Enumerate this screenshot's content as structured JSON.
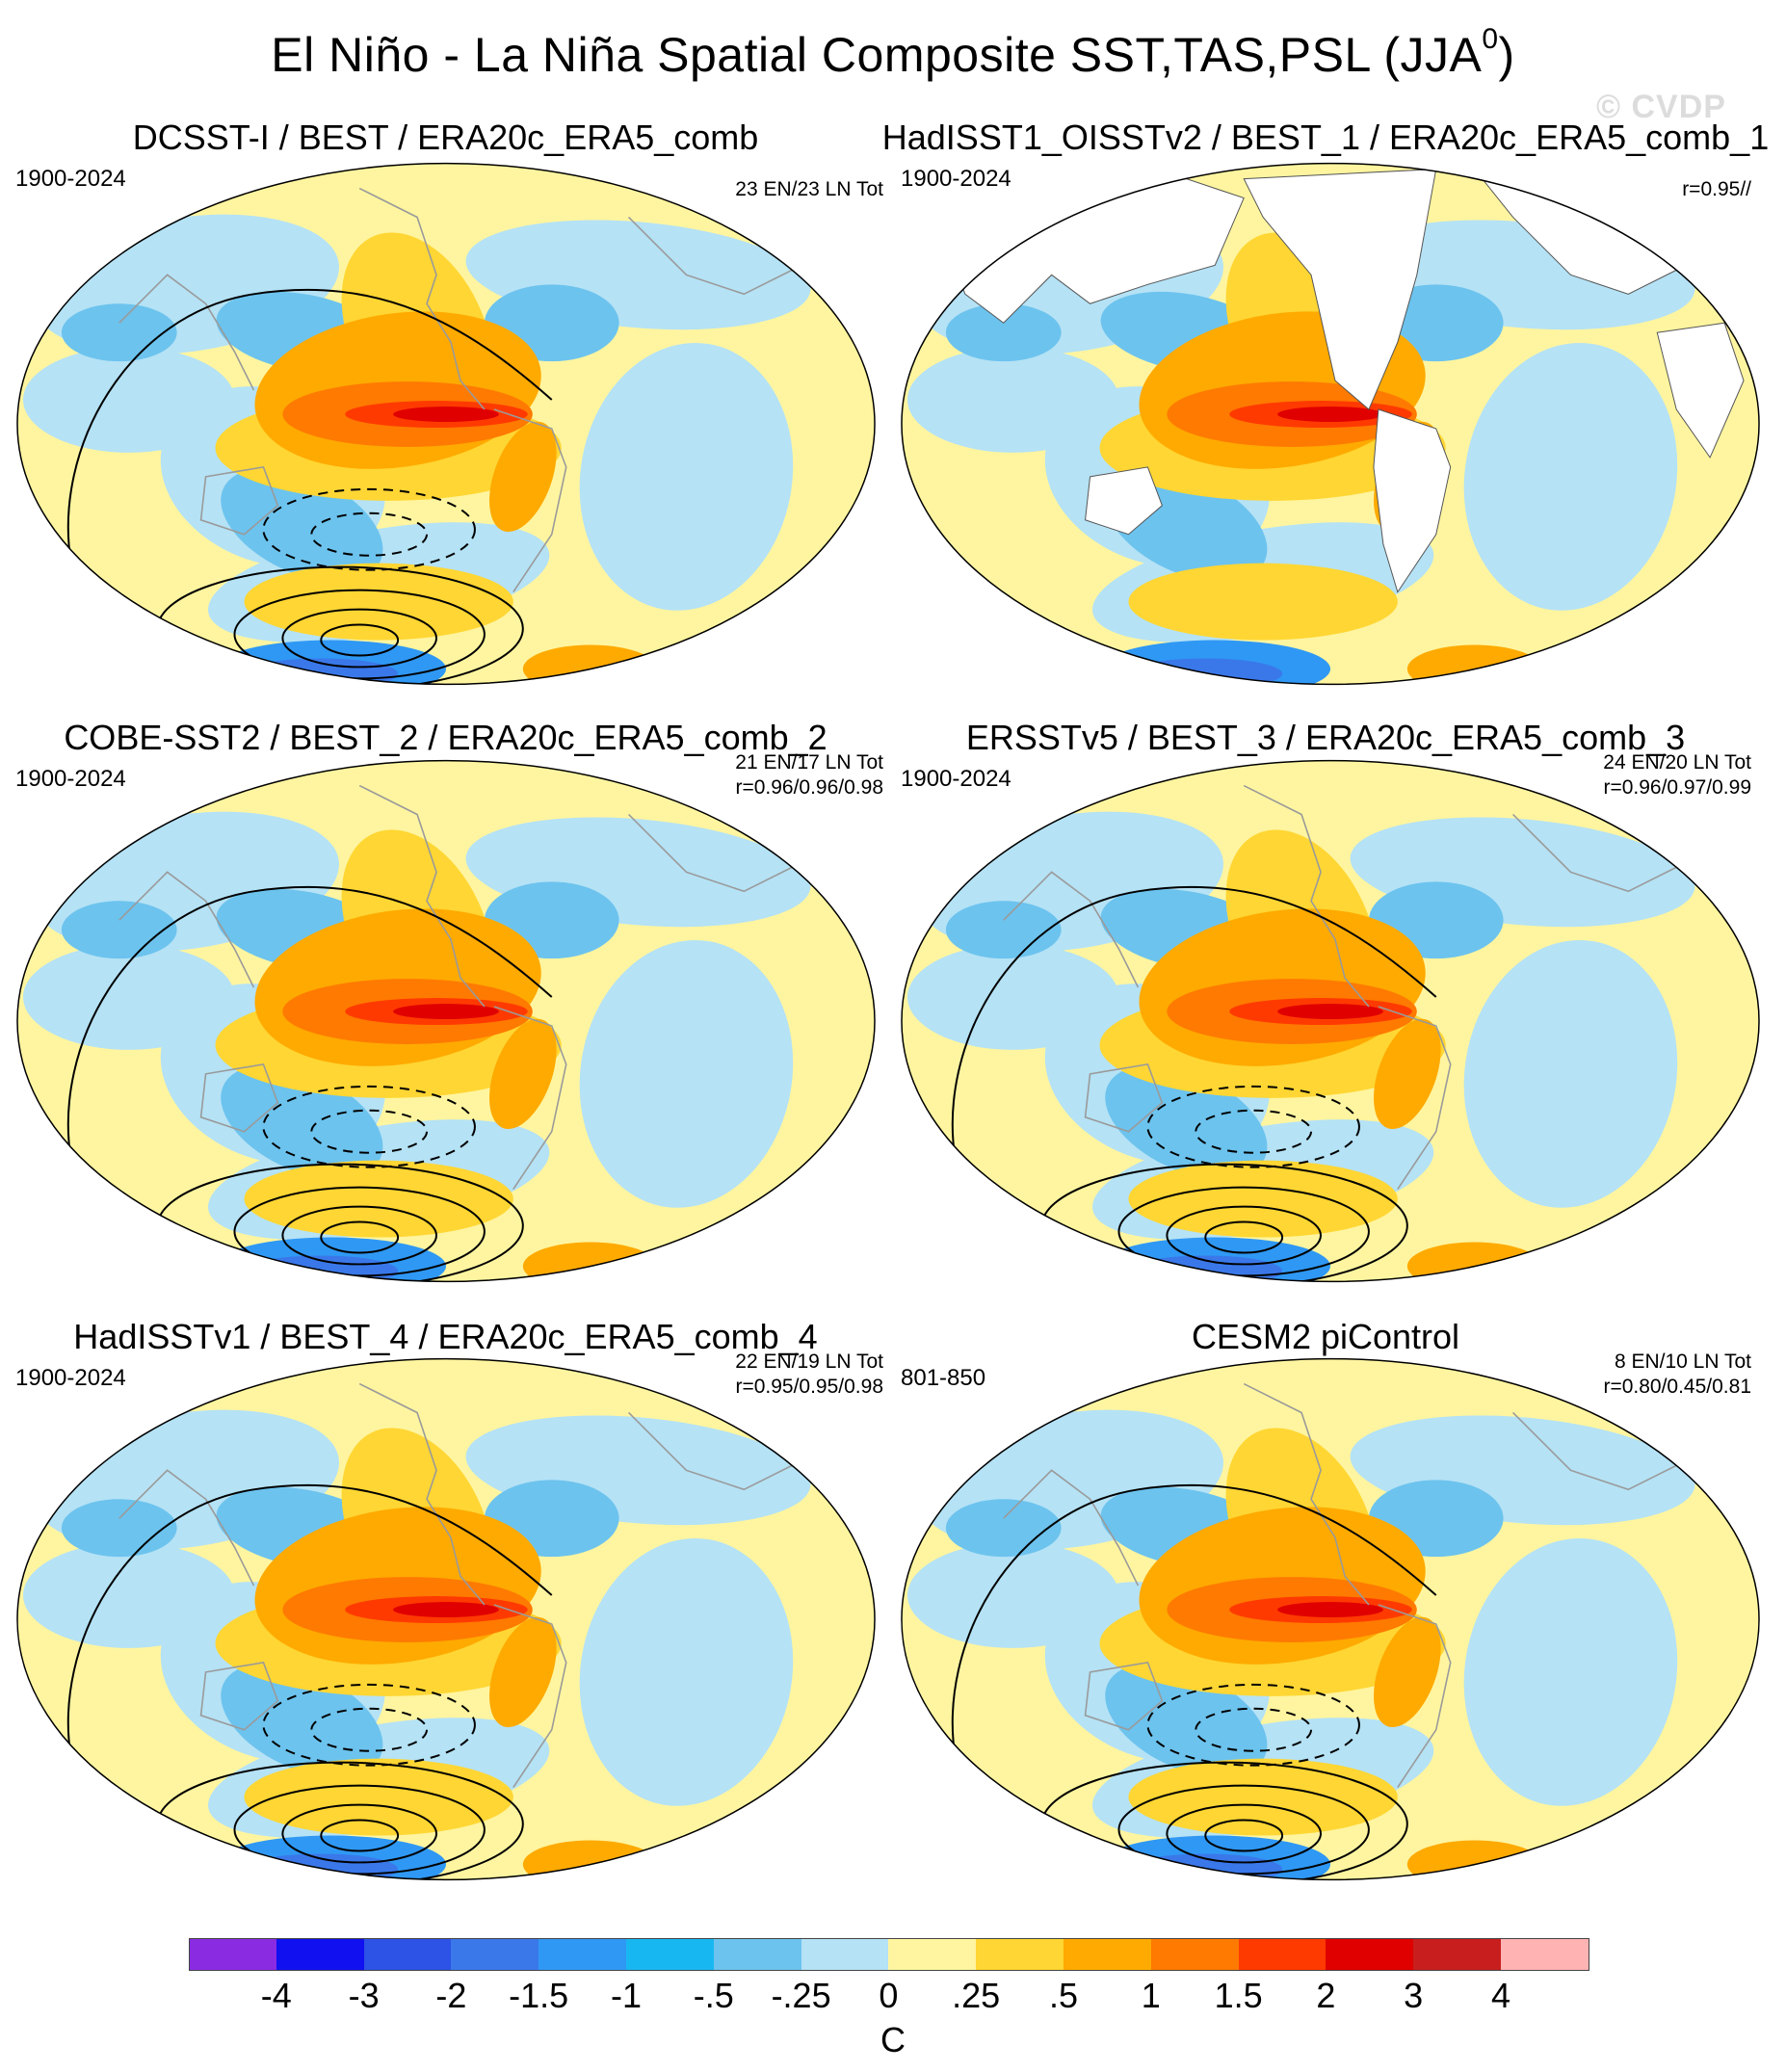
{
  "figure": {
    "title": "El Niño - La Niña Spatial Composite SST,TAS,PSL (JJA",
    "title_sup": "0",
    "title_close": ")",
    "watermark": "© CVDP"
  },
  "panels": [
    {
      "title": "DCSST-I / BEST / ERA20c_ERA5_comb",
      "period": "1900-2024",
      "stat1": "23 EN/23 LN Tot",
      "stat2": "",
      "land_masked": false
    },
    {
      "title": "HadISST1_OISSTv2 / BEST_1 / ERA20c_ERA5_comb_1",
      "period": "1900-2024",
      "stat1": "r=0.95//",
      "stat2": "",
      "land_masked": true
    },
    {
      "title": "COBE-SST2 / BEST_2 / ERA20c_ERA5_comb_2",
      "period": "1900-2024",
      "stat1": "21 EN/17 LN Tot",
      "stat2": "r=0.96/0.96/0.98",
      "land_masked": false
    },
    {
      "title": "ERSSTv5 / BEST_3 / ERA20c_ERA5_comb_3",
      "period": "1900-2024",
      "stat1": "24 EN/20 LN Tot",
      "stat2": "r=0.96/0.97/0.99",
      "land_masked": false
    },
    {
      "title": "HadISSTv1 / BEST_4 / ERA20c_ERA5_comb_4",
      "period": "1900-2024",
      "stat1": "22 EN/19 LN Tot",
      "stat2": "r=0.95/0.95/0.98",
      "land_masked": false
    },
    {
      "title": "CESM2 piControl",
      "period": "801-850",
      "stat1": "8 EN/10 LN Tot",
      "stat2": "r=0.80/0.45/0.81",
      "land_masked": false
    }
  ],
  "colorbar": {
    "unit": "C",
    "tick_labels": [
      "-4",
      "-3",
      "-2",
      "-1.5",
      "-1",
      "-.5",
      "-.25",
      "0",
      ".25",
      ".5",
      "1",
      "1.5",
      "2",
      "3",
      "4"
    ],
    "colors": [
      "#8a2be2",
      "#1010f0",
      "#2d52e6",
      "#3a78ea",
      "#2f98f4",
      "#17b7f2",
      "#6cc3ee",
      "#b5e2f5",
      "#fff5a0",
      "#ffd633",
      "#ffaa00",
      "#ff7a00",
      "#ff3a00",
      "#e00000",
      "#c81e1e",
      "#ffb3b3"
    ]
  }
}
